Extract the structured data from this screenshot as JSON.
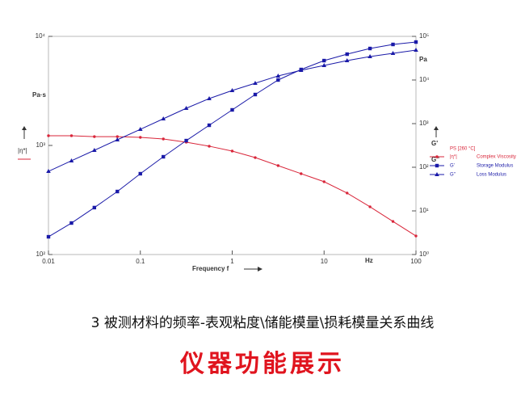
{
  "chart_data": {
    "type": "line",
    "xlabel": "Frequency f",
    "x_unit": "Hz",
    "ylabel": "Pa·s",
    "ylabel_symbol": "|η*|",
    "y2label": "Pa",
    "y2label_symbols": [
      "G'",
      "G''"
    ],
    "legend_title": "PS [260 °C]",
    "legend": "right",
    "xscale": "log",
    "yscale": "log",
    "y2scale": "log",
    "xlim": [
      0.01,
      100
    ],
    "xticks": [
      0.01,
      0.1,
      1,
      10,
      100
    ],
    "ylim": [
      100,
      10000
    ],
    "yticks": [
      {
        "value": 100,
        "label": "10²"
      },
      {
        "value": 1000,
        "label": "10³"
      },
      {
        "value": 10000,
        "label": "10⁴"
      }
    ],
    "y2lim": [
      1,
      100000
    ],
    "y2ticks": [
      {
        "value": 1,
        "label": "10⁰"
      },
      {
        "value": 10,
        "label": "10¹"
      },
      {
        "value": 100,
        "label": "10²"
      },
      {
        "value": 1000,
        "label": "10³"
      },
      {
        "value": 10000,
        "label": "10⁴"
      },
      {
        "value": 100000,
        "label": "10⁵"
      }
    ],
    "x": [
      0.01,
      0.0178,
      0.0316,
      0.0562,
      0.1,
      0.178,
      0.316,
      0.562,
      1,
      1.78,
      3.16,
      5.62,
      10,
      17.8,
      31.6,
      56.2,
      100
    ],
    "series": [
      {
        "name": "Complex Viscosity",
        "label": "|η*|",
        "marker": "dot",
        "color": "#d9263a",
        "axis": "y",
        "values": [
          1228,
          1228,
          1205,
          1205,
          1186,
          1146,
          1071,
          984,
          888,
          774,
          653,
          551,
          465,
          366,
          274,
          201,
          148
        ]
      },
      {
        "name": "Storage Modulus",
        "label": "G'",
        "marker": "square",
        "color": "#1a1aa8",
        "axis": "y2",
        "values": [
          2.55,
          5.27,
          11.9,
          27.8,
          71.1,
          174,
          408,
          918,
          2065,
          4642,
          10000,
          17400,
          27800,
          39100,
          52700,
          65300,
          74100
        ]
      },
      {
        "name": "Loss Modulus",
        "label": "G''",
        "marker": "triangle",
        "color": "#1a1aa8",
        "axis": "y2",
        "values": [
          80.7,
          141,
          245,
          426,
          741,
          1292,
          2249,
          3750,
          5740,
          8440,
          12400,
          16700,
          21500,
          27800,
          34400,
          40800,
          48400
        ]
      }
    ]
  },
  "caption": "3 被测材料的频率-表观粘度\\储能模量\\损耗模量关系曲线",
  "banner": "仪器功能展示"
}
